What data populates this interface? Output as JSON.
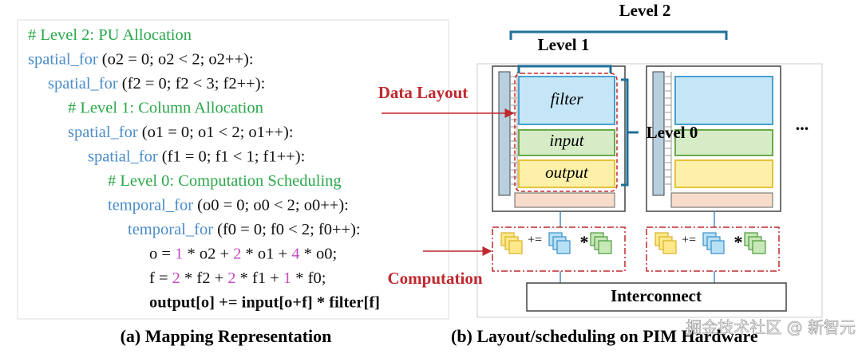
{
  "code": {
    "lines": [
      [
        {
          "text": "# Level 2: PU Allocation",
          "color": "#2aa84a"
        }
      ],
      [
        {
          "text": "spatial_for",
          "color": "#4a8cc8"
        },
        {
          "text": " (o2 = 0; o2 < 2; o2++):",
          "color": "#111111"
        }
      ],
      [
        {
          "text": "spatial_for",
          "color": "#4a8cc8"
        },
        {
          "text": " (f2 = 0; f2 < 3; f2++):",
          "color": "#111111"
        }
      ],
      [
        {
          "text": "# Level 1: Column Allocation",
          "color": "#2aa84a"
        }
      ],
      [
        {
          "text": "spatial_for",
          "color": "#4a8cc8"
        },
        {
          "text": " (o1 = 0; o1 < 2; o1++):",
          "color": "#111111"
        }
      ],
      [
        {
          "text": "spatial_for",
          "color": "#4a8cc8"
        },
        {
          "text": " (f1 = 0; f1 < 1; f1++):",
          "color": "#111111"
        }
      ],
      [
        {
          "text": "# Level 0: Computation Scheduling",
          "color": "#2aa84a"
        }
      ],
      [
        {
          "text": "temporal_for",
          "color": "#4a8cc8"
        },
        {
          "text": " (o0 = 0; o0 < 2; o0++):",
          "color": "#111111"
        }
      ],
      [
        {
          "text": "temporal_for",
          "color": "#4a8cc8"
        },
        {
          "text": " (f0 = 0; f0 < 2; f0++):",
          "color": "#111111"
        }
      ],
      [
        {
          "text": "o = ",
          "color": "#111111"
        },
        {
          "text": "1",
          "color": "#c04cc0"
        },
        {
          "text": " * o2 + ",
          "color": "#111111"
        },
        {
          "text": "2",
          "color": "#c04cc0"
        },
        {
          "text": " * o1 + ",
          "color": "#111111"
        },
        {
          "text": "4",
          "color": "#c04cc0"
        },
        {
          "text": " * o0;",
          "color": "#111111"
        }
      ],
      [
        {
          "text": "f = ",
          "color": "#111111"
        },
        {
          "text": "2",
          "color": "#c04cc0"
        },
        {
          "text": " * f2 + ",
          "color": "#111111"
        },
        {
          "text": "2",
          "color": "#c04cc0"
        },
        {
          "text": " * f1 + ",
          "color": "#111111"
        },
        {
          "text": "1",
          "color": "#c04cc0"
        },
        {
          "text": " * f0;",
          "color": "#111111"
        }
      ],
      [
        {
          "text": "output[o] += input[o+f] * filter[f]",
          "color": "#111111"
        }
      ]
    ]
  },
  "labels": {
    "level2": "Level 2",
    "level1": "Level 1",
    "level0": "Level 0",
    "data_layout": "Data Layout",
    "computation": "Computation",
    "filter": "filter",
    "input": "input",
    "output": "output",
    "ellipsis": "...",
    "interconnect": "Interconnect",
    "plus_eq": "+=",
    "times": "*"
  },
  "captions": {
    "a": "(a) Mapping Representation",
    "b": "(b) Layout/scheduling on PIM Hardware"
  },
  "watermark": "掘金技术社区 @ 新智元"
}
